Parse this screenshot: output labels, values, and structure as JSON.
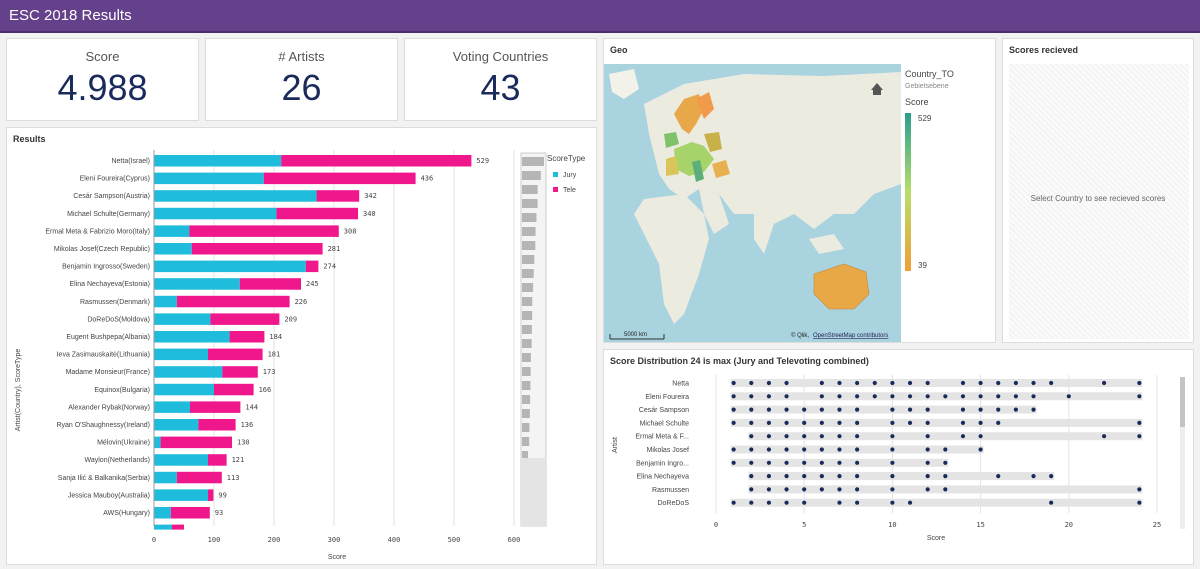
{
  "app": {
    "title": "ESC 2018 Results"
  },
  "kpis": [
    {
      "label": "Score",
      "value": "4.988"
    },
    {
      "label": "# Artists",
      "value": "26"
    },
    {
      "label": "Voting Countries",
      "value": "43"
    }
  ],
  "results": {
    "title": "Results",
    "y_axis_label": "Artist(Country), ScoreType",
    "x_axis_label": "Score",
    "legend_title": "ScoreType",
    "legend_items": [
      {
        "name": "Jury",
        "color": "#20bcdc"
      },
      {
        "name": "Tele",
        "color": "#f0168c"
      }
    ]
  },
  "chart_data": [
    {
      "type": "bar",
      "orientation": "horizontal-stacked",
      "title": "Results",
      "xlabel": "Score",
      "ylabel": "Artist(Country), ScoreType",
      "xlim": [
        0,
        600
      ],
      "xticks": [
        "0",
        "100",
        "200",
        "300",
        "400",
        "500",
        "600"
      ],
      "categories": [
        "Netta(Israel)",
        "Eleni Foureira(Cyprus)",
        "Cesár Sampson(Austria)",
        "Michael Schulte(Germany)",
        "Ermal Meta & Fabrizio Moro(Italy)",
        "Mikolas Josef(Czech Republic)",
        "Benjamin Ingrosso(Sweden)",
        "Elina Nechayeva(Estonia)",
        "Rasmussen(Denmark)",
        "DoReDoS(Moldova)",
        "Eugent Bushpepa(Albania)",
        "Ieva Zasimauskaitė(Lithuania)",
        "Madame Monsieur(France)",
        "Equinox(Bulgaria)",
        "Alexander Rybak(Norway)",
        "Ryan O'Shaughnessy(Ireland)",
        "Mélovin(Ukraine)",
        "Waylon(Netherlands)",
        "Sanja Ilić & Balkanika(Serbia)",
        "Jessica Mauboy(Australia)",
        "AWS(Hungary)"
      ],
      "totals": [
        "529",
        "436",
        "342",
        "340",
        "308",
        "281",
        "274",
        "245",
        "226",
        "209",
        "184",
        "181",
        "173",
        "166",
        "144",
        "136",
        "130",
        "121",
        "113",
        "99",
        "93"
      ],
      "series": [
        {
          "name": "Jury",
          "values": [
            212,
            183,
            271,
            204,
            59,
            63,
            253,
            143,
            38,
            94,
            126,
            90,
            114,
            100,
            60,
            74,
            11,
            90,
            38,
            90,
            28
          ]
        },
        {
          "name": "Tele",
          "values": [
            317,
            253,
            71,
            136,
            249,
            218,
            21,
            102,
            188,
            115,
            58,
            91,
            59,
            66,
            84,
            62,
            119,
            31,
            75,
            9,
            65
          ]
        }
      ],
      "legend": "right",
      "grid": true
    },
    {
      "type": "scatter",
      "title": "Score Distribution 24 is max (Jury and Televoting combined)",
      "xlabel": "Score",
      "ylabel": "Artist",
      "xlim": [
        0,
        25
      ],
      "xticks": [
        "0",
        "5",
        "10",
        "15",
        "20",
        "25"
      ],
      "categories": [
        "Netta",
        "Eleni Foureira",
        "Cesár Sampson",
        "Michael Schulte",
        "Ermal Meta & F...",
        "Mikolas Josef",
        "Benjamin Ingro...",
        "Elina Nechayeva",
        "Rasmussen",
        "DoReDoS"
      ],
      "points": [
        [
          1,
          2,
          3,
          4,
          6,
          7,
          8,
          9,
          10,
          11,
          12,
          14,
          15,
          16,
          17,
          18,
          19,
          22,
          24
        ],
        [
          1,
          2,
          3,
          4,
          6,
          7,
          8,
          9,
          10,
          11,
          12,
          13,
          14,
          15,
          16,
          17,
          18,
          20,
          24
        ],
        [
          1,
          2,
          3,
          4,
          5,
          6,
          7,
          8,
          10,
          11,
          12,
          14,
          15,
          16,
          17,
          18
        ],
        [
          1,
          2,
          3,
          4,
          5,
          6,
          7,
          8,
          10,
          11,
          12,
          14,
          15,
          16,
          24
        ],
        [
          2,
          3,
          4,
          5,
          6,
          7,
          8,
          10,
          12,
          14,
          15,
          22,
          24
        ],
        [
          1,
          2,
          3,
          4,
          5,
          6,
          7,
          8,
          10,
          12,
          13,
          15
        ],
        [
          1,
          2,
          3,
          4,
          5,
          6,
          7,
          8,
          10,
          12,
          13
        ],
        [
          2,
          3,
          4,
          5,
          6,
          7,
          8,
          10,
          12,
          13,
          16,
          18,
          19
        ],
        [
          2,
          3,
          4,
          5,
          6,
          7,
          8,
          10,
          12,
          13,
          24
        ],
        [
          1,
          2,
          3,
          4,
          5,
          7,
          8,
          10,
          11,
          19,
          24
        ]
      ],
      "grid": true
    }
  ],
  "geo": {
    "title": "Geo",
    "legend_dim": "Country_TO",
    "legend_sub": "Gebietsebene",
    "legend_measure": "Score",
    "legend_max": "529",
    "legend_min": "39",
    "scale": "5000 km",
    "attribution_prefix": "© Qlik,",
    "attribution_link": "OpenStreetMap contributors",
    "colors": {
      "high": "#2a9d8f",
      "mid": "#b6e06a",
      "low": "#f29d36"
    }
  },
  "scores_received": {
    "title": "Scores recieved",
    "message": "Select Country to see recieved scores"
  }
}
